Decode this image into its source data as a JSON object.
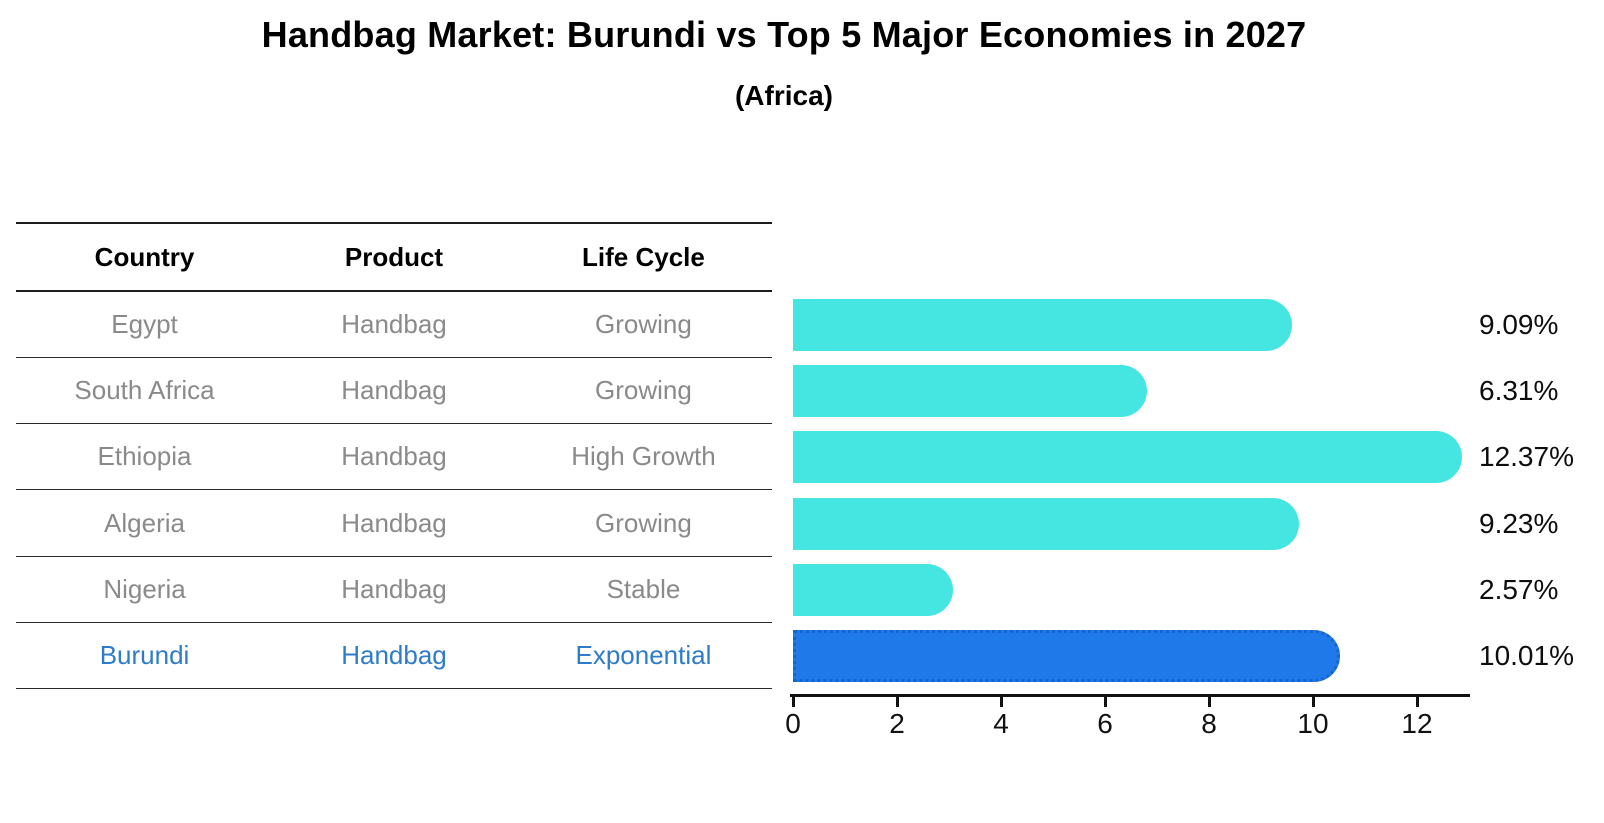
{
  "title": "Handbag Market: Burundi vs Top 5 Major Economies in 2027",
  "subtitle": "(Africa)",
  "table": {
    "headers": [
      "Country",
      "Product",
      "Life Cycle"
    ],
    "rows": [
      {
        "country": "Egypt",
        "product": "Handbag",
        "life_cycle": "Growing",
        "highlighted": false
      },
      {
        "country": "South Africa",
        "product": "Handbag",
        "life_cycle": "Growing",
        "highlighted": false
      },
      {
        "country": "Ethiopia",
        "product": "Handbag",
        "life_cycle": "High Growth",
        "highlighted": false
      },
      {
        "country": "Algeria",
        "product": "Handbag",
        "life_cycle": "Growing",
        "highlighted": false
      },
      {
        "country": "Nigeria",
        "product": "Handbag",
        "life_cycle": "Stable",
        "highlighted": false
      },
      {
        "country": "Burundi",
        "product": "Handbag",
        "life_cycle": "Exponential",
        "highlighted": true
      }
    ]
  },
  "chart_data": {
    "type": "bar",
    "orientation": "horizontal",
    "title": "Handbag Market: Burundi vs Top 5 Major Economies in 2027",
    "subtitle": "(Africa)",
    "categories": [
      "Egypt",
      "South Africa",
      "Ethiopia",
      "Algeria",
      "Nigeria",
      "Burundi"
    ],
    "values": [
      9.09,
      6.31,
      12.37,
      9.23,
      2.57,
      10.01
    ],
    "value_labels": [
      "9.09%",
      "6.31%",
      "12.37%",
      "9.23%",
      "2.57%",
      "10.01%"
    ],
    "xlabel": "",
    "ylabel": "",
    "xticks": [
      0,
      2,
      4,
      6,
      8,
      10,
      12
    ],
    "xlim": [
      0,
      13
    ],
    "grid": false,
    "legend": "none",
    "bar_color": "#45e6e2",
    "highlight_bar_color": "#2079e8",
    "highlight_text_color": "#2e7bcc",
    "highlight_index": 5
  },
  "colors": {
    "title_text": "#000000",
    "table_text": "#8a8a8a",
    "axis": "#111111"
  }
}
